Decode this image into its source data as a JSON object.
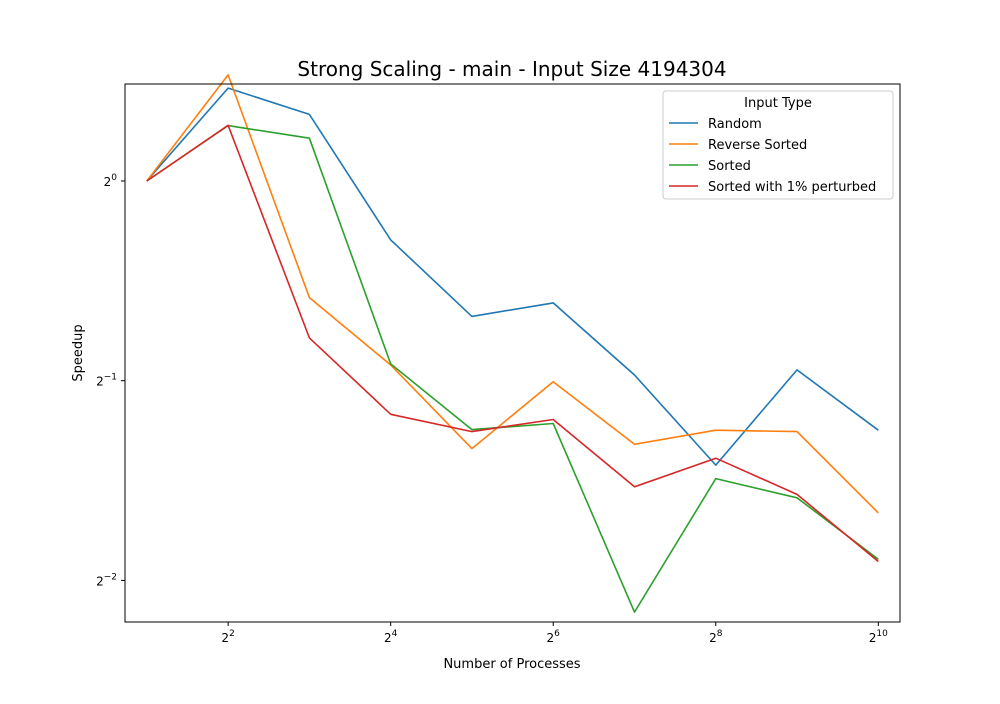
{
  "chart_data": {
    "type": "line",
    "title": "Strong Scaling - main - Input Size 4194304",
    "xlabel": "Number of Processes",
    "ylabel": "Speedup",
    "x_scale": "log2",
    "y_scale": "log2",
    "xlim": [
      1.66,
      1232
    ],
    "ylim": [
      0.2164,
      1.4
    ],
    "grid": false,
    "x": [
      2,
      4,
      8,
      16,
      32,
      64,
      128,
      256,
      512,
      1024
    ],
    "x_ticks": [
      {
        "value": 4,
        "base": "2",
        "exp": "2"
      },
      {
        "value": 16,
        "base": "2",
        "exp": "4"
      },
      {
        "value": 64,
        "base": "2",
        "exp": "6"
      },
      {
        "value": 256,
        "base": "2",
        "exp": "8"
      },
      {
        "value": 1024,
        "base": "2",
        "exp": "10"
      }
    ],
    "y_ticks": [
      {
        "value": 1,
        "base": "2",
        "exp": "0"
      },
      {
        "value": 0.5,
        "base": "2",
        "exp": "−1"
      },
      {
        "value": 0.25,
        "base": "2",
        "exp": "−2"
      }
    ],
    "legend": {
      "title": "Input Type",
      "position": "top-right"
    },
    "series": [
      {
        "name": "Random",
        "color": "#1f77b4",
        "values": [
          1.0,
          1.38,
          1.26,
          0.815,
          0.625,
          0.655,
          0.51,
          0.373,
          0.519,
          0.421
        ]
      },
      {
        "name": "Reverse Sorted",
        "color": "#ff7f0e",
        "values": [
          1.0,
          1.445,
          0.667,
          0.528,
          0.395,
          0.498,
          0.401,
          0.421,
          0.419,
          0.316
        ]
      },
      {
        "name": "Sorted",
        "color": "#2ca02c",
        "values": [
          1.0,
          1.212,
          1.16,
          0.53,
          0.422,
          0.431,
          0.224,
          0.356,
          0.333,
          0.269
        ]
      },
      {
        "name": "Sorted with 1% perturbed",
        "color": "#d62728",
        "values": [
          1.0,
          1.213,
          0.58,
          0.445,
          0.419,
          0.437,
          0.346,
          0.382,
          0.337,
          0.267
        ]
      }
    ]
  }
}
